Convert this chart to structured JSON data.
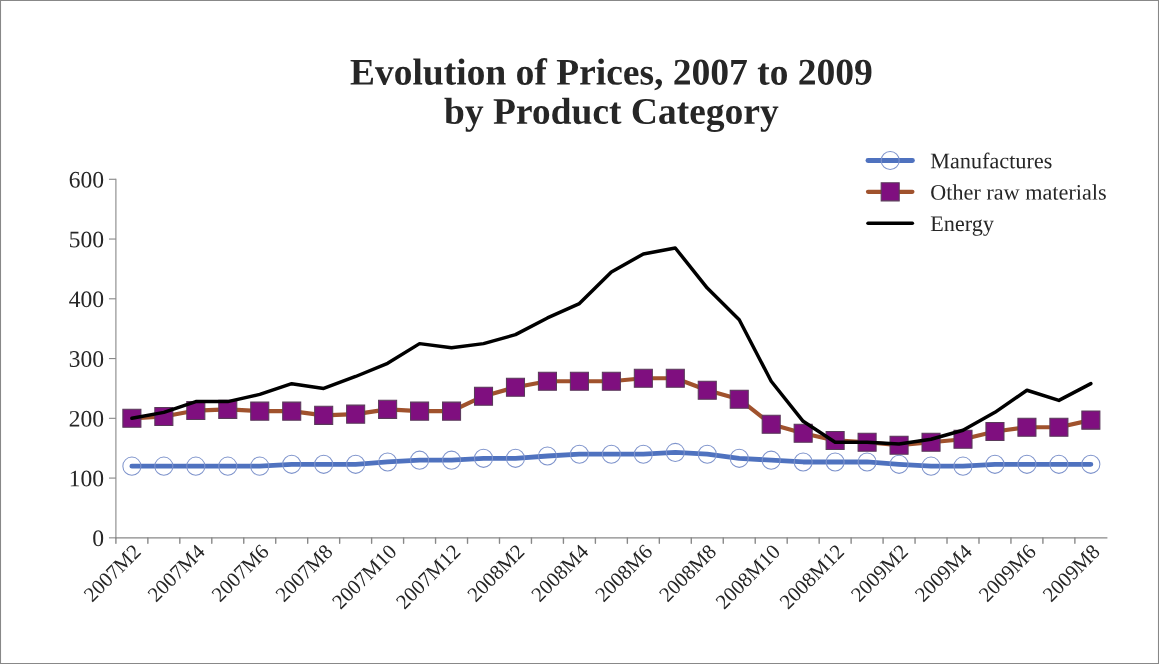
{
  "chart_data": {
    "type": "line",
    "title": "Evolution of Prices, 2007 to 2009\nby Product Category",
    "categories": [
      "2007M2",
      null,
      "2007M4",
      null,
      "2007M6",
      null,
      "2007M8",
      null,
      "2007M10",
      null,
      "2007M12",
      null,
      "2008M2",
      null,
      "2008M4",
      null,
      "2008M6",
      null,
      "2008M8",
      null,
      "2008M10",
      null,
      "2008M12",
      null,
      "2009M2",
      null,
      "2009M4",
      null,
      "2009M6",
      null,
      "2009M8"
    ],
    "series": [
      {
        "name": "Manufactures",
        "color": "#4f72bf",
        "marker": "circle",
        "values": [
          120,
          120,
          120,
          120,
          120,
          123,
          123,
          123,
          127,
          130,
          130,
          133,
          133,
          137,
          140,
          140,
          140,
          143,
          140,
          133,
          130,
          127,
          127,
          127,
          123,
          120,
          120,
          123,
          123,
          123,
          123
        ]
      },
      {
        "name": "Other raw materials",
        "color": "#7f0f7f",
        "marker": "square",
        "values": [
          200,
          203,
          213,
          215,
          212,
          212,
          205,
          207,
          215,
          212,
          212,
          237,
          252,
          262,
          262,
          262,
          267,
          267,
          247,
          232,
          190,
          175,
          163,
          160,
          155,
          160,
          165,
          178,
          185,
          185,
          197
        ]
      },
      {
        "name": "Energy",
        "color": "#000000",
        "marker": "none",
        "values": [
          200,
          210,
          228,
          228,
          240,
          258,
          250,
          270,
          292,
          325,
          318,
          325,
          340,
          368,
          392,
          445,
          475,
          485,
          418,
          365,
          262,
          195,
          160,
          160,
          157,
          165,
          180,
          210,
          247,
          230,
          258
        ]
      }
    ],
    "ylim": [
      0,
      600
    ],
    "yticks": [
      0,
      100,
      200,
      300,
      400,
      500,
      600
    ],
    "grid": false,
    "legend": "top right"
  }
}
